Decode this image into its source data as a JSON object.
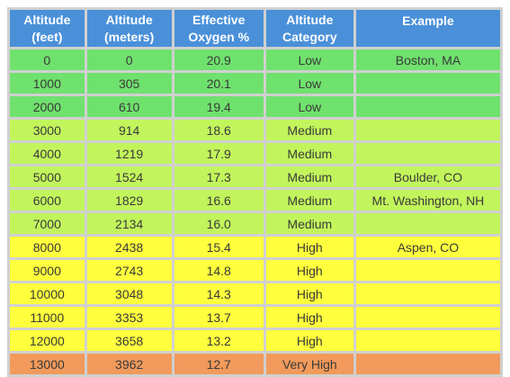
{
  "table": {
    "headers": [
      {
        "line1": "Altitude",
        "line2": "(feet)"
      },
      {
        "line1": "Altitude",
        "line2": "(meters)"
      },
      {
        "line1": "Effective",
        "line2": "Oxygen %"
      },
      {
        "line1": "Altitude",
        "line2": "Category"
      },
      {
        "line1": "Example",
        "line2": ""
      }
    ],
    "rows": [
      {
        "cells": [
          "0",
          "0",
          "20.9",
          "Low",
          "Boston, MA"
        ]
      },
      {
        "cells": [
          "1000",
          "305",
          "20.1",
          "Low",
          ""
        ]
      },
      {
        "cells": [
          "2000",
          "610",
          "19.4",
          "Low",
          ""
        ]
      },
      {
        "cells": [
          "3000",
          "914",
          "18.6",
          "Medium",
          ""
        ]
      },
      {
        "cells": [
          "4000",
          "1219",
          "17.9",
          "Medium",
          ""
        ]
      },
      {
        "cells": [
          "5000",
          "1524",
          "17.3",
          "Medium",
          "Boulder, CO"
        ]
      },
      {
        "cells": [
          "6000",
          "1829",
          "16.6",
          "Medium",
          "Mt. Washington, NH"
        ]
      },
      {
        "cells": [
          "7000",
          "2134",
          "16.0",
          "Medium",
          ""
        ]
      },
      {
        "cells": [
          "8000",
          "2438",
          "15.4",
          "High",
          "Aspen, CO"
        ]
      },
      {
        "cells": [
          "9000",
          "2743",
          "14.8",
          "High",
          ""
        ]
      },
      {
        "cells": [
          "10000",
          "3048",
          "14.3",
          "High",
          ""
        ]
      },
      {
        "cells": [
          "11000",
          "3353",
          "13.7",
          "High",
          ""
        ]
      },
      {
        "cells": [
          "12000",
          "3658",
          "13.2",
          "High",
          ""
        ]
      },
      {
        "cells": [
          "13000",
          "3962",
          "12.7",
          "Very High",
          ""
        ]
      }
    ]
  },
  "colors": {
    "header": "#4a90d9",
    "low": "#6fe16d",
    "medium": "#c2f55c",
    "high": "#ffff3d",
    "very_high": "#f19a5b"
  }
}
